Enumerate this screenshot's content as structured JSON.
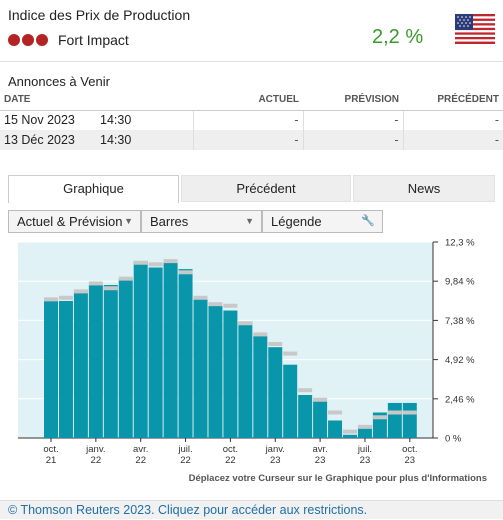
{
  "header": {
    "title": "Indice des Prix de Production",
    "impact_label": "Fort Impact",
    "value": "2,2 %",
    "flag_icon": "us-flag-icon",
    "impact_color": "#b52424",
    "value_color": "#3a9a2a"
  },
  "upcoming": {
    "title": "Annonces à Venir",
    "columns": [
      "DATE",
      "ACTUEL",
      "PRÉVISION",
      "PRÉCÉDENT"
    ],
    "rows": [
      {
        "date": "15 Nov 2023",
        "time": "14:30",
        "actual": "-",
        "forecast": "-",
        "previous": "-"
      },
      {
        "date": "13 Déc 2023",
        "time": "14:30",
        "actual": "-",
        "forecast": "-",
        "previous": "-"
      }
    ]
  },
  "tabs": [
    {
      "label": "Graphique",
      "active": true
    },
    {
      "label": "Précédent",
      "active": false
    },
    {
      "label": "News",
      "active": false
    }
  ],
  "toolbar": {
    "mode": "Actuel & Prévision",
    "type": "Barres",
    "legend": "Légende",
    "legend_icon": "wrench-icon"
  },
  "chart_data": {
    "type": "bar",
    "y_ticks": [
      "12,3 %",
      "9,84 %",
      "7,38 %",
      "4,92 %",
      "2,46 %",
      "0 %"
    ],
    "ylim": [
      0,
      12.3
    ],
    "x_ticks": [
      {
        "label1": "oct.",
        "label2": "21",
        "index": 0
      },
      {
        "label1": "janv.",
        "label2": "22",
        "index": 3
      },
      {
        "label1": "avr.",
        "label2": "22",
        "index": 6
      },
      {
        "label1": "juil.",
        "label2": "22",
        "index": 9
      },
      {
        "label1": "oct.",
        "label2": "22",
        "index": 12
      },
      {
        "label1": "janv.",
        "label2": "23",
        "index": 15
      },
      {
        "label1": "avr.",
        "label2": "23",
        "index": 18
      },
      {
        "label1": "juil.",
        "label2": "23",
        "index": 21
      },
      {
        "label1": "oct.",
        "label2": "23",
        "index": 24
      }
    ],
    "categories": [
      "oct. 21",
      "nov. 21",
      "déc. 21",
      "janv. 22",
      "févr. 22",
      "mars 22",
      "avr. 22",
      "mai 22",
      "juin 22",
      "juil. 22",
      "août 22",
      "sept. 22",
      "oct. 22",
      "nov. 22",
      "déc. 22",
      "janv. 23",
      "févr. 23",
      "mars 23",
      "avr. 23",
      "mai 23",
      "juin 23",
      "juil. 23",
      "août 23",
      "sept. 23",
      "oct. 23"
    ],
    "series": [
      {
        "name": "Actuel",
        "values": [
          8.6,
          8.6,
          9.2,
          9.6,
          9.6,
          10.0,
          11.1,
          10.7,
          11.0,
          10.6,
          8.7,
          8.3,
          8.0,
          7.3,
          6.4,
          5.7,
          4.6,
          2.7,
          2.3,
          1.1,
          0.2,
          0.8,
          1.6,
          2.2,
          2.2
        ],
        "color": "#0a96aa"
      },
      {
        "name": "Prévision",
        "values": [
          8.7,
          8.8,
          9.2,
          9.7,
          9.4,
          10.0,
          11.0,
          10.9,
          11.1,
          10.4,
          8.8,
          8.4,
          8.3,
          7.2,
          6.5,
          5.9,
          5.3,
          3.0,
          2.4,
          1.6,
          0.4,
          0.7,
          1.3,
          1.6,
          1.6
        ],
        "color": "#c8c8c8"
      }
    ],
    "bg_color": "#e0f2f6",
    "instruction": "Déplacez votre Curseur sur le Graphique pour plus d'Informations"
  },
  "footer": {
    "text": "© Thomson Reuters 2023. Cliquez pour accéder aux restrictions."
  }
}
